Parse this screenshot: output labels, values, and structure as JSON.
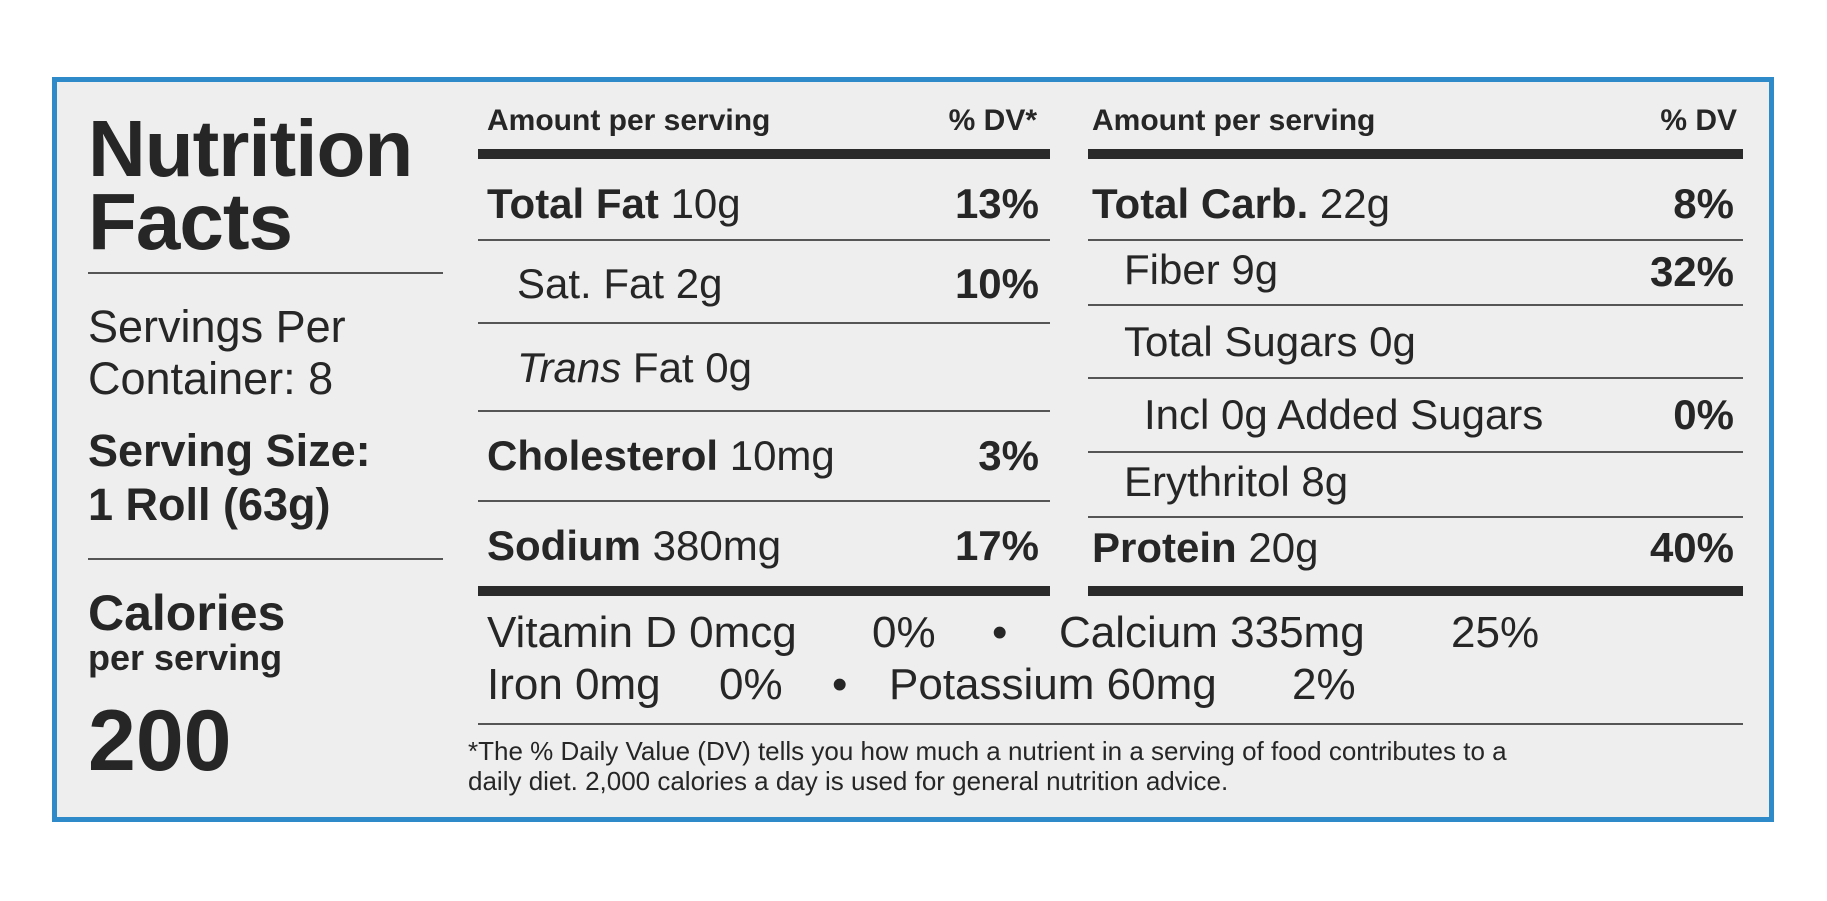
{
  "title": {
    "line1": "Nutrition",
    "line2": "Facts"
  },
  "servings": {
    "line1": "Servings Per",
    "line2": "Container: 8"
  },
  "serving_size": {
    "label": "Serving Size:",
    "value": "1 Roll (63g)"
  },
  "calories": {
    "label": "Calories",
    "sub": "per serving",
    "value": "200"
  },
  "left_table": {
    "header_amount": "Amount per serving",
    "header_dv": "% DV*",
    "rows": [
      {
        "name": "Total Fat",
        "amount": "10g",
        "dv": "13%"
      },
      {
        "name": "Sat. Fat",
        "amount": "2g",
        "dv": "10%"
      },
      {
        "name": "Trans",
        "amount": "Fat 0g",
        "dv": ""
      },
      {
        "name": "Cholesterol",
        "amount": "10mg",
        "dv": "3%"
      },
      {
        "name": "Sodium",
        "amount": "380mg",
        "dv": "17%"
      }
    ]
  },
  "right_table": {
    "header_amount": "Amount per serving",
    "header_dv": "% DV",
    "rows": [
      {
        "name": "Total Carb.",
        "amount": "22g",
        "dv": "8%"
      },
      {
        "name": "Fiber 9g",
        "amount": "",
        "dv": "32%"
      },
      {
        "name": "Total Sugars 0g",
        "amount": "",
        "dv": ""
      },
      {
        "name": "Incl 0g Added Sugars",
        "amount": "",
        "dv": "0%"
      },
      {
        "name": "Erythritol 8g",
        "amount": "",
        "dv": ""
      },
      {
        "name": "Protein",
        "amount": "20g",
        "dv": "40%"
      }
    ]
  },
  "vitamins": {
    "line1": {
      "a_name": "Vitamin D 0mcg",
      "a_dv": "0%",
      "sep": "•",
      "b_name": "Calcium 335mg",
      "b_dv": "25%"
    },
    "line2": {
      "a_name": "Iron 0mg",
      "a_dv": "0%",
      "sep": "•",
      "b_name": "Potassium 60mg",
      "b_dv": "2%"
    }
  },
  "footnote": {
    "line1": "*The % Daily Value (DV) tells you how much a nutrient in a serving of food contributes to a",
    "line2": "daily diet.  2,000 calories a day is used for general nutrition advice."
  },
  "colors": {
    "border": "#2f8ac9",
    "panel": "#eeeeee",
    "ink": "#262626"
  }
}
